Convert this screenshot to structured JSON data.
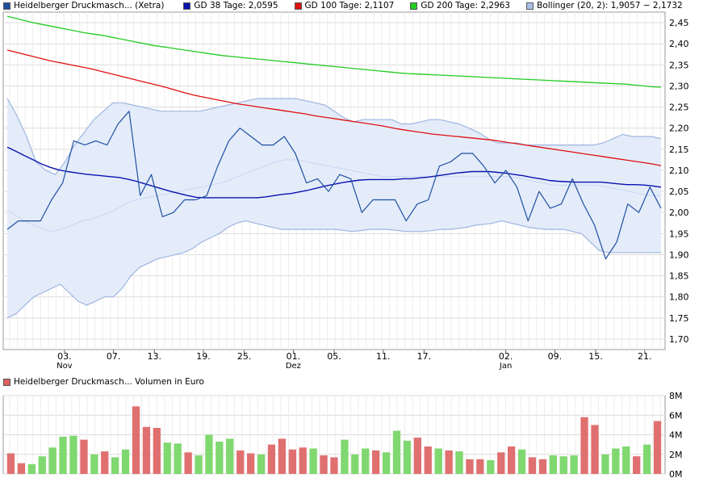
{
  "legend": [
    {
      "label": "Heidelberger Druckmasch... (Xetra)",
      "color": "#1f4fa0"
    },
    {
      "label": "GD 38 Tage: 2,0595",
      "color": "#0a12b0"
    },
    {
      "label": "GD 100 Tage: 2,1107",
      "color": "#e01010"
    },
    {
      "label": "GD 200 Tage: 2,2963",
      "color": "#22cc22"
    },
    {
      "label": "Bollinger (20, 2): 1,9057 − 2,1732",
      "color": "#a9c1ea"
    }
  ],
  "volume_legend": {
    "label": "Heidelberger Druckmasch... Volumen in Euro",
    "color": "#e06060"
  },
  "chart_data": [
    {
      "type": "line",
      "ylim": [
        1.675,
        2.475
      ],
      "yticks": [
        1.7,
        1.75,
        1.8,
        1.85,
        1.9,
        1.95,
        2.0,
        2.05,
        2.1,
        2.15,
        2.2,
        2.25,
        2.3,
        2.35,
        2.4,
        2.45
      ],
      "ytick_labels": [
        "1,70",
        "1,75",
        "1,80",
        "1,85",
        "1,90",
        "1,95",
        "2,00",
        "2,05",
        "2,10",
        "2,15",
        "2,20",
        "2,25",
        "2,30",
        "2,35",
        "2,40",
        "2,45"
      ],
      "xlim": [
        0,
        81
      ],
      "x_ticks": [
        {
          "i": 7,
          "label": "03.",
          "sub": "Nov"
        },
        {
          "i": 13,
          "label": "07.",
          "sub": ""
        },
        {
          "i": 18,
          "label": "13.",
          "sub": ""
        },
        {
          "i": 24,
          "label": "19.",
          "sub": ""
        },
        {
          "i": 29,
          "label": "25.",
          "sub": ""
        },
        {
          "i": 35,
          "label": "01.",
          "sub": "Dez"
        },
        {
          "i": 40,
          "label": "05.",
          "sub": ""
        },
        {
          "i": 46,
          "label": "11.",
          "sub": ""
        },
        {
          "i": 51,
          "label": "17.",
          "sub": ""
        },
        {
          "i": 61,
          "label": "02.",
          "sub": "Jan"
        },
        {
          "i": 67,
          "label": "09.",
          "sub": ""
        },
        {
          "i": 72,
          "label": "15.",
          "sub": ""
        },
        {
          "i": 78,
          "label": "21.",
          "sub": ""
        }
      ],
      "series": [
        {
          "key": "price",
          "values": [
            1.96,
            1.98,
            1.98,
            1.98,
            2.03,
            2.07,
            2.17,
            2.16,
            2.17,
            2.16,
            2.21,
            2.24,
            2.04,
            2.09,
            1.99,
            2.0,
            2.03,
            2.03,
            2.04,
            2.11,
            2.17,
            2.2,
            2.18,
            2.16,
            2.16,
            2.18,
            2.14,
            2.07,
            2.08,
            2.05,
            2.09,
            2.08,
            2.0,
            2.03,
            2.03,
            2.03,
            1.98,
            2.02,
            2.03,
            2.11,
            2.12,
            2.14,
            2.14,
            2.11,
            2.07,
            2.1,
            2.06,
            1.98,
            2.05,
            2.01,
            2.02,
            2.08,
            2.02,
            1.97,
            1.89,
            1.93,
            2.02,
            2.0,
            2.06,
            2.01
          ]
        },
        {
          "key": "gd38",
          "values": [
            2.155,
            2.145,
            2.135,
            2.125,
            2.115,
            2.107,
            2.101,
            2.097,
            2.094,
            2.091,
            2.089,
            2.087,
            2.085,
            2.083,
            2.079,
            2.074,
            2.068,
            2.062,
            2.056,
            2.05,
            2.045,
            2.04,
            2.036,
            2.035,
            2.035,
            2.035,
            2.035,
            2.035,
            2.035,
            2.035,
            2.037,
            2.04,
            2.043,
            2.045,
            2.049,
            2.053,
            2.058,
            2.063,
            2.067,
            2.071,
            2.074,
            2.077,
            2.078,
            2.078,
            2.078,
            2.078,
            2.08,
            2.08,
            2.082,
            2.084,
            2.087,
            2.09,
            2.093,
            2.095,
            2.097,
            2.097,
            2.097,
            2.095,
            2.093,
            2.09,
            2.087,
            2.083,
            2.08,
            2.076,
            2.074,
            2.073,
            2.072,
            2.072,
            2.072,
            2.072,
            2.07,
            2.068,
            2.066,
            2.066,
            2.065,
            2.063,
            2.06
          ]
        },
        {
          "key": "gd100",
          "values": [
            2.385,
            2.38,
            2.375,
            2.37,
            2.365,
            2.36,
            2.356,
            2.352,
            2.348,
            2.344,
            2.34,
            2.335,
            2.33,
            2.325,
            2.32,
            2.315,
            2.31,
            2.305,
            2.3,
            2.295,
            2.289,
            2.283,
            2.278,
            2.274,
            2.27,
            2.266,
            2.262,
            2.258,
            2.255,
            2.252,
            2.249,
            2.246,
            2.243,
            2.24,
            2.237,
            2.234,
            2.23,
            2.227,
            2.224,
            2.221,
            2.218,
            2.215,
            2.212,
            2.209,
            2.206,
            2.202,
            2.198,
            2.195,
            2.192,
            2.189,
            2.186,
            2.184,
            2.182,
            2.18,
            2.178,
            2.176,
            2.174,
            2.172,
            2.169,
            2.166,
            2.163,
            2.16,
            2.157,
            2.154,
            2.151,
            2.148,
            2.145,
            2.142,
            2.139,
            2.136,
            2.133,
            2.13,
            2.127,
            2.124,
            2.121,
            2.118,
            2.115,
            2.111
          ]
        },
        {
          "key": "gd200",
          "values": [
            2.465,
            2.46,
            2.455,
            2.45,
            2.446,
            2.442,
            2.438,
            2.434,
            2.43,
            2.426,
            2.423,
            2.42,
            2.416,
            2.412,
            2.408,
            2.404,
            2.4,
            2.396,
            2.393,
            2.39,
            2.387,
            2.384,
            2.381,
            2.378,
            2.375,
            2.372,
            2.37,
            2.368,
            2.366,
            2.364,
            2.362,
            2.36,
            2.358,
            2.356,
            2.354,
            2.352,
            2.35,
            2.348,
            2.346,
            2.344,
            2.342,
            2.34,
            2.338,
            2.336,
            2.334,
            2.332,
            2.33,
            2.329,
            2.328,
            2.327,
            2.326,
            2.325,
            2.324,
            2.323,
            2.322,
            2.321,
            2.32,
            2.319,
            2.318,
            2.317,
            2.316,
            2.315,
            2.314,
            2.313,
            2.312,
            2.311,
            2.31,
            2.309,
            2.308,
            2.307,
            2.306,
            2.305,
            2.304,
            2.302,
            2.3,
            2.298,
            2.297
          ]
        },
        {
          "key": "boll_upper",
          "values": [
            2.27,
            2.23,
            2.18,
            2.12,
            2.1,
            2.09,
            2.12,
            2.16,
            2.19,
            2.22,
            2.24,
            2.26,
            2.26,
            2.255,
            2.25,
            2.245,
            2.24,
            2.24,
            2.24,
            2.24,
            2.24,
            2.245,
            2.25,
            2.255,
            2.26,
            2.265,
            2.27,
            2.27,
            2.27,
            2.27,
            2.27,
            2.265,
            2.26,
            2.255,
            2.24,
            2.225,
            2.215,
            2.22,
            2.22,
            2.22,
            2.22,
            2.21,
            2.21,
            2.215,
            2.22,
            2.22,
            2.215,
            2.21,
            2.2,
            2.19,
            2.175,
            2.165,
            2.165,
            2.165,
            2.16,
            2.16,
            2.16,
            2.16,
            2.16,
            2.16,
            2.16,
            2.16,
            2.165,
            2.175,
            2.185,
            2.18,
            2.18,
            2.18,
            2.175
          ]
        },
        {
          "key": "boll_lower",
          "values": [
            1.75,
            1.76,
            1.78,
            1.8,
            1.81,
            1.82,
            1.83,
            1.81,
            1.79,
            1.78,
            1.79,
            1.8,
            1.8,
            1.82,
            1.85,
            1.87,
            1.88,
            1.89,
            1.895,
            1.9,
            1.905,
            1.915,
            1.93,
            1.94,
            1.95,
            1.965,
            1.975,
            1.98,
            1.975,
            1.97,
            1.965,
            1.96,
            1.96,
            1.96,
            1.96,
            1.96,
            1.96,
            1.96,
            1.958,
            1.955,
            1.957,
            1.96,
            1.96,
            1.96,
            1.958,
            1.955,
            1.955,
            1.955,
            1.957,
            1.96,
            1.96,
            1.962,
            1.965,
            1.97,
            1.972,
            1.975,
            1.98,
            1.975,
            1.97,
            1.965,
            1.962,
            1.96,
            1.96,
            1.96,
            1.955,
            1.95,
            1.93,
            1.91,
            1.905,
            1.905,
            1.905,
            1.905,
            1.905,
            1.905,
            1.905
          ]
        },
        {
          "key": "boll_mid",
          "values": [
            2.005,
            1.99,
            1.975,
            1.965,
            1.955,
            1.96,
            1.97,
            1.98,
            1.985,
            1.995,
            2.005,
            2.02,
            2.03,
            2.035,
            2.04,
            2.045,
            2.05,
            2.055,
            2.06,
            2.065,
            2.07,
            2.08,
            2.09,
            2.1,
            2.11,
            2.12,
            2.125,
            2.125,
            2.12,
            2.115,
            2.11,
            2.105,
            2.1,
            2.095,
            2.09,
            2.085,
            2.085,
            2.085,
            2.085,
            2.085,
            2.085,
            2.085,
            2.085,
            2.085,
            2.085,
            2.085,
            2.085,
            2.085,
            2.08,
            2.075,
            2.07,
            2.065,
            2.065,
            2.065,
            2.065,
            2.065,
            2.06,
            2.055,
            2.05,
            2.045,
            2.04,
            2.04
          ]
        }
      ]
    },
    {
      "type": "bar",
      "ylim": [
        0,
        8
      ],
      "yticks": [
        0,
        2,
        4,
        6,
        8
      ],
      "ytick_labels": [
        "0M",
        "2M",
        "4M",
        "6M",
        "8M"
      ],
      "values": [
        2.1,
        1.1,
        1.0,
        1.8,
        2.7,
        3.8,
        3.9,
        3.5,
        2.0,
        2.3,
        1.7,
        2.5,
        6.9,
        4.8,
        4.7,
        3.2,
        3.1,
        2.2,
        1.9,
        4.0,
        3.3,
        3.6,
        2.4,
        2.1,
        2.0,
        3.0,
        3.6,
        2.5,
        2.7,
        2.6,
        1.9,
        1.7,
        3.5,
        2.0,
        2.6,
        2.4,
        2.2,
        4.4,
        3.4,
        3.7,
        2.8,
        2.6,
        2.4,
        2.3,
        1.5,
        1.5,
        1.4,
        2.2,
        2.8,
        2.5,
        1.7,
        1.5,
        1.9,
        1.8,
        1.9,
        5.8,
        5.0,
        2.0,
        2.6,
        2.8,
        1.8,
        3.0,
        5.4
      ],
      "up": [
        false,
        false,
        true,
        true,
        true,
        true,
        true,
        false,
        true,
        false,
        true,
        true,
        false,
        false,
        false,
        true,
        true,
        false,
        true,
        true,
        true,
        true,
        false,
        false,
        true,
        false,
        false,
        false,
        false,
        true,
        false,
        false,
        true,
        true,
        true,
        false,
        true,
        true,
        true,
        false,
        false,
        true,
        false,
        true,
        false,
        false,
        true,
        false,
        false,
        true,
        false,
        false,
        true,
        true,
        true,
        false,
        false,
        true,
        true,
        true,
        false,
        true,
        false
      ]
    }
  ]
}
